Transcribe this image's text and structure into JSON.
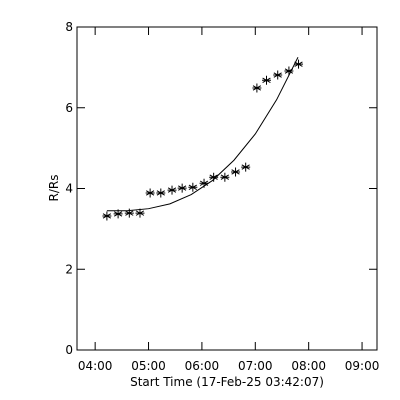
{
  "chart_data": {
    "type": "scatter",
    "x_label": "Start Time (17-Feb-25 03:42:07)",
    "y_label": "R/Rs",
    "x": [
      4.22,
      4.43,
      4.64,
      4.84,
      5.03,
      5.23,
      5.44,
      5.63,
      5.83,
      6.04,
      6.22,
      6.43,
      6.63,
      6.82,
      7.03,
      7.21,
      7.42,
      7.63,
      7.81
    ],
    "values": [
      3.32,
      3.37,
      3.39,
      3.39,
      3.89,
      3.89,
      3.96,
      4.01,
      4.03,
      4.13,
      4.28,
      4.28,
      4.41,
      4.53,
      6.49,
      6.68,
      6.81,
      6.91,
      7.08
    ],
    "fit": {
      "x": [
        4.22,
        4.6,
        5.0,
        5.4,
        5.8,
        6.2,
        6.6,
        7.0,
        7.4,
        7.8
      ],
      "values": [
        3.45,
        3.45,
        3.5,
        3.62,
        3.85,
        4.2,
        4.7,
        5.35,
        6.2,
        7.25
      ]
    },
    "color": "#000000",
    "xlim": [
      3.66,
      9.28
    ],
    "ylim": [
      0,
      8
    ],
    "xticks": [
      {
        "value": 4,
        "label": "04:00"
      },
      {
        "value": 5,
        "label": "05:00"
      },
      {
        "value": 6,
        "label": "06:00"
      },
      {
        "value": 7,
        "label": "07:00"
      },
      {
        "value": 8,
        "label": "08:00"
      },
      {
        "value": 9,
        "label": "09:00"
      }
    ],
    "yticks": [
      0,
      2,
      4,
      6,
      8
    ]
  }
}
